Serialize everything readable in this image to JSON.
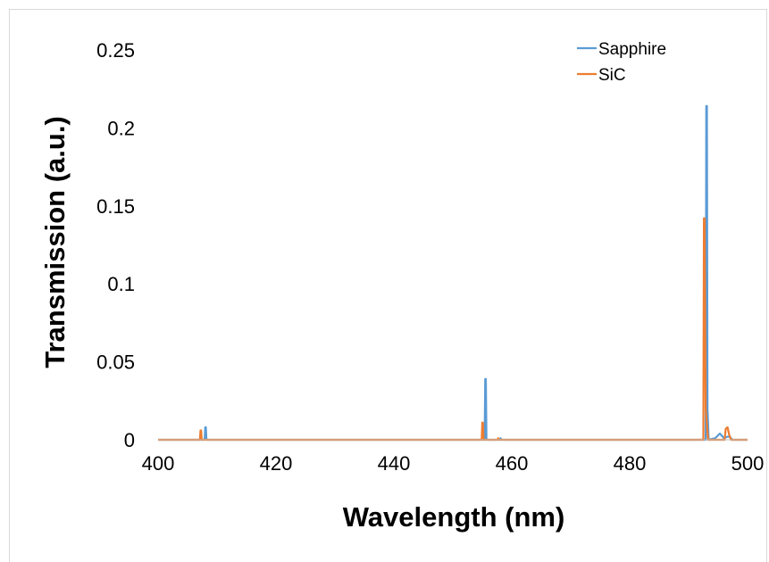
{
  "chart_data": {
    "type": "line",
    "title": "",
    "xlabel": "Wavelength (nm)",
    "ylabel": "Transmission (a.u.)",
    "xlim": [
      400,
      500
    ],
    "ylim": [
      0,
      0.25
    ],
    "xticks": [
      "400",
      "420",
      "440",
      "460",
      "480",
      "500"
    ],
    "yticks": [
      "0",
      "0.05",
      "0.1",
      "0.15",
      "0.2",
      "0.25"
    ],
    "grid": false,
    "legend_position": "top-right",
    "series": [
      {
        "name": "Sapphire",
        "color": "#5b9bd5",
        "x": [
          400,
          407.9,
          408.0,
          408.1,
          408.2,
          455.4,
          455.5,
          455.6,
          455.7,
          458.0,
          458.1,
          458.2,
          492.9,
          493.0,
          493.1,
          493.2,
          493.4,
          494.5,
          495.3,
          496.0,
          496.6,
          497.0,
          497.4,
          500
        ],
        "y": [
          0,
          0,
          0.008,
          0.008,
          0,
          0,
          0.039,
          0.039,
          0,
          0,
          0.001,
          0,
          0,
          0.214,
          0.214,
          0.02,
          0,
          0.001,
          0.004,
          0.001,
          0.002,
          0.002,
          0,
          0
        ]
      },
      {
        "name": "SiC",
        "color": "#ed7d31",
        "x": [
          400,
          407.1,
          407.2,
          407.3,
          407.4,
          454.9,
          455.0,
          455.1,
          455.2,
          457.6,
          457.7,
          457.8,
          492.5,
          492.6,
          492.7,
          492.9,
          493.3,
          496.1,
          496.3,
          496.6,
          496.9,
          497.2,
          500
        ],
        "y": [
          0,
          0,
          0.006,
          0.006,
          0,
          0,
          0.011,
          0.011,
          0,
          0,
          0.001,
          0,
          0,
          0.142,
          0.142,
          0.02,
          0,
          0,
          0.007,
          0.008,
          0.003,
          0,
          0
        ]
      }
    ]
  }
}
